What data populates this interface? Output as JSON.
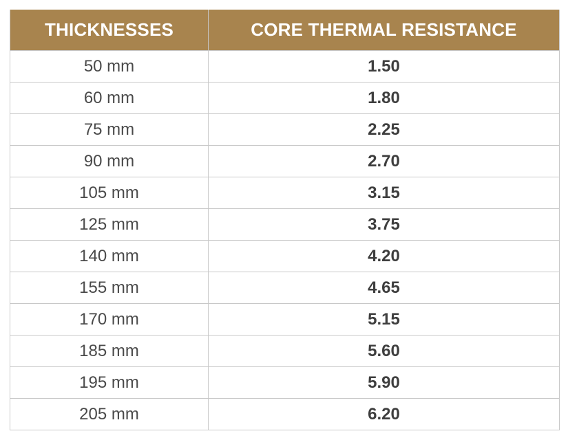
{
  "table": {
    "headers": [
      "THICKNESSES",
      "CORE THERMAL RESISTANCE"
    ],
    "rows": [
      [
        "50 mm",
        "1.50"
      ],
      [
        "60 mm",
        "1.80"
      ],
      [
        "75 mm",
        "2.25"
      ],
      [
        "90 mm",
        "2.70"
      ],
      [
        "105 mm",
        "3.15"
      ],
      [
        "125 mm",
        "3.75"
      ],
      [
        "140 mm",
        "4.20"
      ],
      [
        "155 mm",
        "4.65"
      ],
      [
        "170 mm",
        "5.15"
      ],
      [
        "185 mm",
        "5.60"
      ],
      [
        "195 mm",
        "5.90"
      ],
      [
        "205 mm",
        "6.20"
      ]
    ]
  },
  "colors": {
    "header_background": "#a8844e",
    "header_text": "#ffffff",
    "border": "#c8c8c8",
    "body_text": "#4a4a4a"
  }
}
